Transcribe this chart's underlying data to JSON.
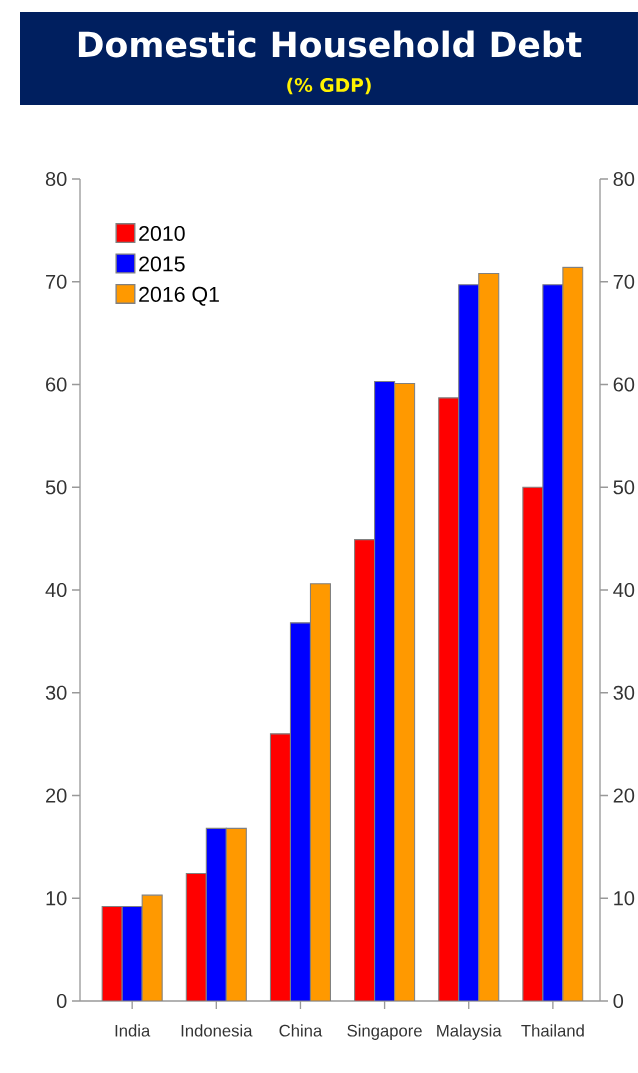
{
  "chart_data": {
    "type": "bar",
    "title": "Domestic Household Debt",
    "subtitle": "(% GDP)",
    "categories": [
      "India",
      "Indonesia",
      "China",
      "Singapore",
      "Malaysia",
      "Thailand"
    ],
    "series": [
      {
        "name": "2010",
        "color": "#ff0000",
        "values": [
          9.2,
          12.4,
          26.0,
          44.9,
          58.7,
          50.0
        ]
      },
      {
        "name": "2015",
        "color": "#0000ff",
        "values": [
          9.2,
          16.8,
          36.8,
          60.3,
          69.7,
          69.7
        ]
      },
      {
        "name": "2016 Q1",
        "color": "#ff9900",
        "values": [
          10.3,
          16.8,
          40.6,
          60.1,
          70.8,
          71.4
        ]
      }
    ],
    "ylim": [
      0,
      80
    ],
    "yticks": [
      0,
      10,
      20,
      30,
      40,
      50,
      60,
      70,
      80
    ],
    "y2lim": [
      0,
      80
    ],
    "y2ticks": [
      0,
      10,
      20,
      30,
      40,
      50,
      60,
      70,
      80
    ],
    "legend": "top left"
  }
}
